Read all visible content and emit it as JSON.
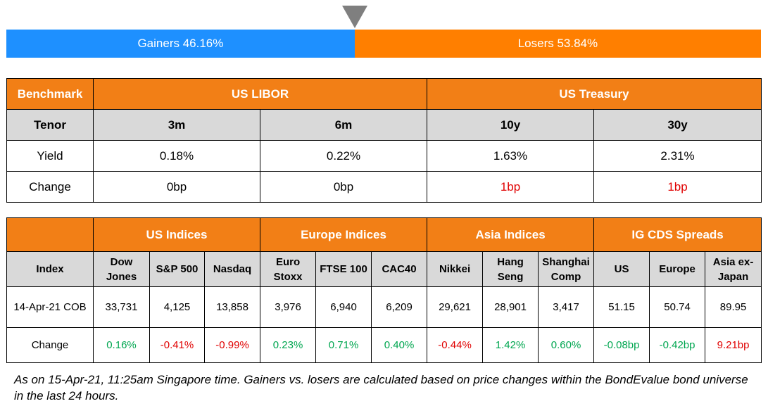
{
  "breadth": {
    "gainers_label": "Gainers 46.16%",
    "losers_label": "Losers 53.84%",
    "gainers_pct": 46.16,
    "losers_pct": 53.84,
    "gainers_color": "#1e90ff",
    "losers_color": "#ff7f00",
    "marker_icon": "triangle-down-icon"
  },
  "rates": {
    "benchmark_label": "Benchmark",
    "group1": "US LIBOR",
    "group2": "US Treasury",
    "tenor_label": "Tenor",
    "tenors": [
      "3m",
      "6m",
      "10y",
      "30y"
    ],
    "yield_label": "Yield",
    "yields": [
      "0.18%",
      "0.22%",
      "1.63%",
      "2.31%"
    ],
    "change_label": "Change",
    "changes": [
      "0bp",
      "0bp",
      "1bp",
      "1bp"
    ]
  },
  "indices": {
    "groups": [
      "US Indices",
      "Europe Indices",
      "Asia Indices",
      "IG CDS Spreads"
    ],
    "index_label": "Index",
    "names": [
      "Dow Jones",
      "S&P 500",
      "Nasdaq",
      "Euro Stoxx",
      "FTSE 100",
      "CAC40",
      "Nikkei",
      "Hang Seng",
      "Shanghai Comp",
      "US",
      "Europe",
      "Asia ex-Japan"
    ],
    "date_label": "14-Apr-21 COB",
    "values": [
      "33,731",
      "4,125",
      "13,858",
      "3,976",
      "6,940",
      "6,209",
      "29,621",
      "28,901",
      "3,417",
      "51.15",
      "50.74",
      "89.95"
    ],
    "change_label": "Change",
    "changes": [
      "0.16%",
      "-0.41%",
      "-0.99%",
      "0.23%",
      "0.71%",
      "0.40%",
      "-0.44%",
      "1.42%",
      "0.60%",
      "-0.08bp",
      "-0.42bp",
      "9.21bp"
    ]
  },
  "note": "As on 15-Apr-21, 11:25am Singapore time. Gainers vs. losers are calculated based on price changes within the BondEvalue bond universe in the last 24 hours.",
  "colors": {
    "header_orange": "#f27f16",
    "header_grey": "#d9d9d9",
    "positive": "#00a650",
    "negative": "#e00000"
  }
}
